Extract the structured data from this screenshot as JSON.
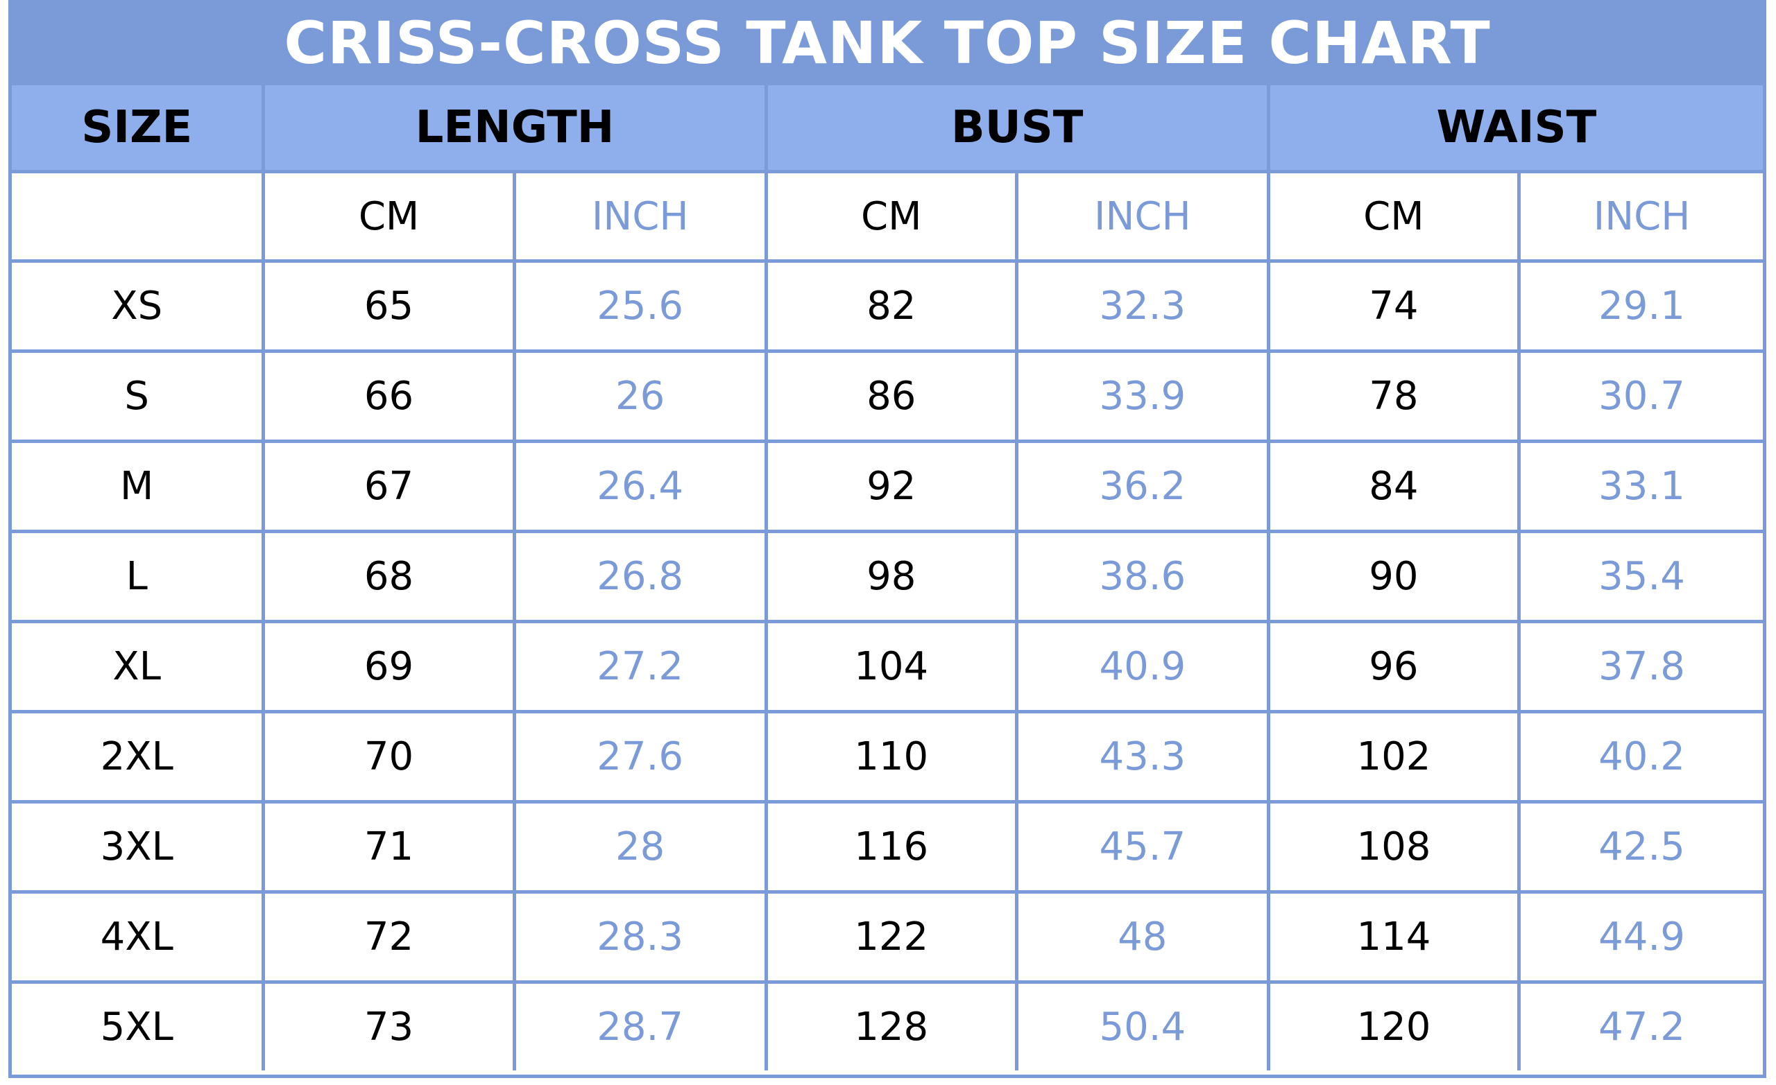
{
  "title": "CRISS-CROSS TANK TOP SIZE CHART",
  "colors": {
    "accent": "#7b9ad8",
    "header_bg": "#8eaeec",
    "inch_text": "#7b9ad8",
    "cm_text": "#000000"
  },
  "headers": {
    "size": "SIZE",
    "length": "LENGTH",
    "bust": "BUST",
    "waist": "WAIST"
  },
  "units": {
    "cm": "CM",
    "inch": "INCH"
  },
  "chart_data": {
    "type": "table",
    "title": "CRISS-CROSS TANK TOP SIZE CHART",
    "columns": [
      "SIZE",
      "LENGTH CM",
      "LENGTH INCH",
      "BUST CM",
      "BUST INCH",
      "WAIST CM",
      "WAIST INCH"
    ],
    "rows": [
      {
        "size": "XS",
        "length_cm": "65",
        "length_inch": "25.6",
        "bust_cm": "82",
        "bust_inch": "32.3",
        "waist_cm": "74",
        "waist_inch": "29.1"
      },
      {
        "size": "S",
        "length_cm": "66",
        "length_inch": "26",
        "bust_cm": "86",
        "bust_inch": "33.9",
        "waist_cm": "78",
        "waist_inch": "30.7"
      },
      {
        "size": "M",
        "length_cm": "67",
        "length_inch": "26.4",
        "bust_cm": "92",
        "bust_inch": "36.2",
        "waist_cm": "84",
        "waist_inch": "33.1"
      },
      {
        "size": "L",
        "length_cm": "68",
        "length_inch": "26.8",
        "bust_cm": "98",
        "bust_inch": "38.6",
        "waist_cm": "90",
        "waist_inch": "35.4"
      },
      {
        "size": "XL",
        "length_cm": "69",
        "length_inch": "27.2",
        "bust_cm": "104",
        "bust_inch": "40.9",
        "waist_cm": "96",
        "waist_inch": "37.8"
      },
      {
        "size": "2XL",
        "length_cm": "70",
        "length_inch": "27.6",
        "bust_cm": "110",
        "bust_inch": "43.3",
        "waist_cm": "102",
        "waist_inch": "40.2"
      },
      {
        "size": "3XL",
        "length_cm": "71",
        "length_inch": "28",
        "bust_cm": "116",
        "bust_inch": "45.7",
        "waist_cm": "108",
        "waist_inch": "42.5"
      },
      {
        "size": "4XL",
        "length_cm": "72",
        "length_inch": "28.3",
        "bust_cm": "122",
        "bust_inch": "48",
        "waist_cm": "114",
        "waist_inch": "44.9"
      },
      {
        "size": "5XL",
        "length_cm": "73",
        "length_inch": "28.7",
        "bust_cm": "128",
        "bust_inch": "50.4",
        "waist_cm": "120",
        "waist_inch": "47.2"
      }
    ]
  }
}
